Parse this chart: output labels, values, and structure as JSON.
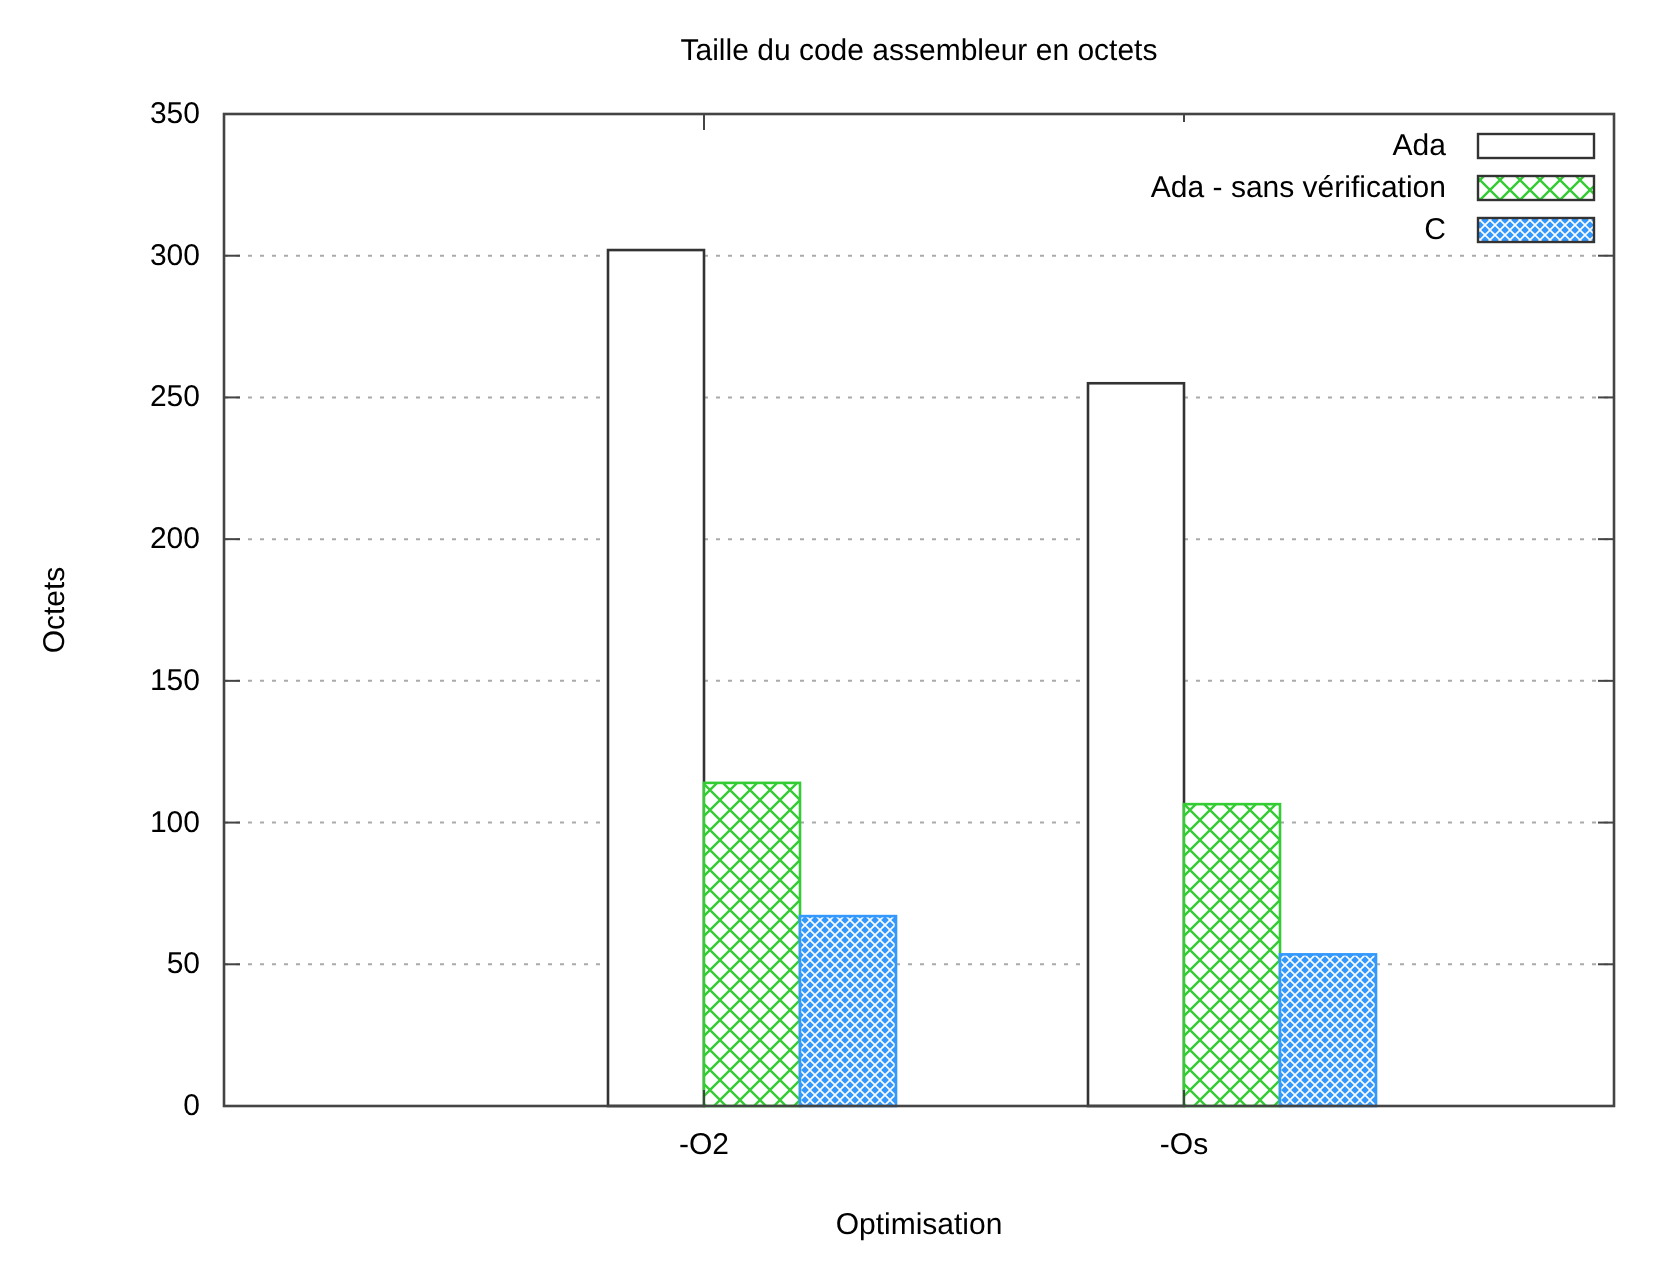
{
  "chart_data": {
    "type": "bar",
    "title": "Taille du code assembleur en octets",
    "xlabel": "Optimisation",
    "ylabel": "Octets",
    "categories": [
      "-O2",
      "-Os"
    ],
    "series": [
      {
        "name": "Ada",
        "color": "#ffffff",
        "values": [
          302,
          255
        ]
      },
      {
        "name": "Ada - sans vérification",
        "color": "#33cc33",
        "values": [
          114,
          106.5
        ]
      },
      {
        "name": "C",
        "color": "#3399ff",
        "values": [
          67,
          53.5
        ]
      }
    ],
    "ylim": [
      0,
      350
    ],
    "yticks": [
      0,
      50,
      100,
      150,
      200,
      250,
      300,
      350
    ],
    "grid": "y",
    "legend": "top right"
  }
}
